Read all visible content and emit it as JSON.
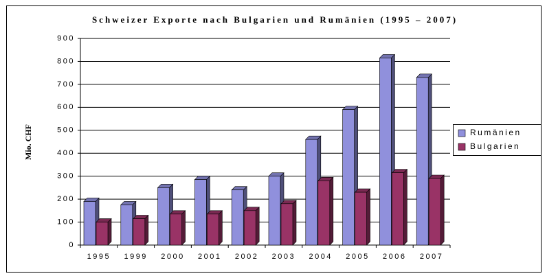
{
  "chart_data": {
    "type": "bar3d",
    "title": "Schweizer Exporte nach Bulgarien und Rumänien (1995 – 2007)",
    "y_label": "Mio. CHF",
    "categories": [
      "1995",
      "1999",
      "2000",
      "2001",
      "2002",
      "2003",
      "2004",
      "2005",
      "2006",
      "2007"
    ],
    "series": [
      {
        "name": "Rumänien",
        "color": "#9090dc",
        "values": [
          190,
          175,
          250,
          285,
          240,
          300,
          460,
          590,
          815,
          730
        ]
      },
      {
        "name": "Bulgarien",
        "color": "#993366",
        "values": [
          100,
          115,
          135,
          135,
          150,
          180,
          280,
          230,
          315,
          290
        ]
      }
    ],
    "ylim": [
      0,
      900
    ],
    "yticks": [
      0,
      100,
      200,
      300,
      400,
      500,
      600,
      700,
      800,
      900
    ],
    "grid": true,
    "legend": "right"
  }
}
